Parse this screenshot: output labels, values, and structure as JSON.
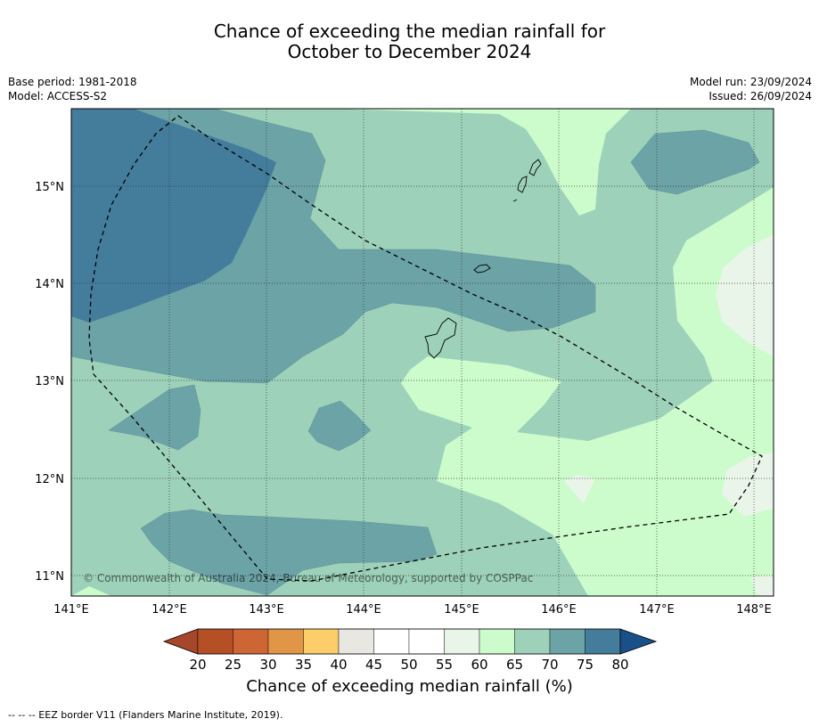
{
  "title": {
    "line1": "Chance of exceeding the median rainfall for",
    "line2": "October to December 2024"
  },
  "meta_left": {
    "base_period": "Base period: 1981-2018",
    "model": "Model: ACCESS-S2"
  },
  "meta_right": {
    "model_run": "Model run: 23/09/2024",
    "issued": "Issued: 26/09/2024"
  },
  "copyright": "© Commonwealth of Australia 2024, Bureau of Meteorology, supported by COSPPac",
  "axes": {
    "lon_ticks": [
      "141°E",
      "142°E",
      "143°E",
      "144°E",
      "145°E",
      "146°E",
      "147°E",
      "148°E"
    ],
    "lat_ticks": [
      "15°N",
      "14°N",
      "13°N",
      "12°N",
      "11°N"
    ]
  },
  "colorbar": {
    "label": "Chance of exceeding median rainfall (%)",
    "ticks": [
      "20",
      "25",
      "30",
      "35",
      "40",
      "45",
      "50",
      "55",
      "60",
      "65",
      "70",
      "75",
      "80"
    ],
    "colors": [
      "#a6462b",
      "#b54f26",
      "#cd6534",
      "#e09547",
      "#fdcd69",
      "#e8e7e2",
      "#ffffff",
      "#ffffff",
      "#eaf5e9",
      "#ccfccc",
      "#9dd1ba",
      "#6ca3a6",
      "#447d9c",
      "#1a508a"
    ]
  },
  "legend_footnote": "--  --  -- EEZ border V11 (Flanders Marine Institute, 2019).",
  "field_colors": {
    "c60_65": "#ccfccc",
    "c65_70": "#9dd1ba",
    "c70_75": "#6ca3a6",
    "c75_80": "#447d9c",
    "c55_60": "#eaf5e9"
  }
}
